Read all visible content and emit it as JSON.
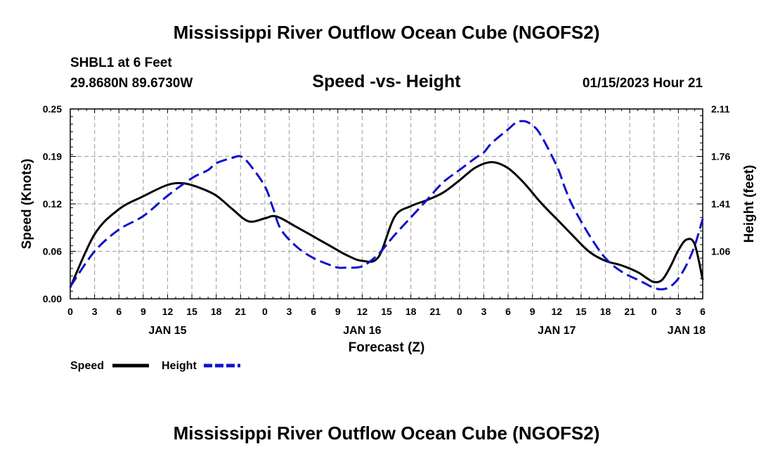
{
  "title": "Mississippi River Outflow Ocean Cube (NGOFS2)",
  "station": "SHBL1 at 6 Feet",
  "coords": "29.8680N  89.6730W",
  "chart_title": "Speed -vs- Height",
  "timestamp": "01/15/2023 Hour 21",
  "footer_title": "Mississippi River Outflow Ocean Cube (NGOFS2)",
  "chart_data": {
    "type": "line",
    "title": "Speed -vs- Height",
    "xlabel": "Forecast (Z)",
    "ylabel_left": "Speed (Knots)",
    "ylabel_right": "Height (feet)",
    "x_range_hours": [
      0,
      78
    ],
    "x_tick_labels": [
      "0",
      "3",
      "6",
      "9",
      "12",
      "15",
      "18",
      "21",
      "0",
      "3",
      "6",
      "9",
      "12",
      "15",
      "18",
      "21",
      "0",
      "3",
      "6",
      "9",
      "12",
      "15",
      "18",
      "21",
      "0",
      "3",
      "6"
    ],
    "day_labels": [
      {
        "text": "JAN 15",
        "hour": 12
      },
      {
        "text": "JAN 16",
        "hour": 36
      },
      {
        "text": "JAN 17",
        "hour": 60
      },
      {
        "text": "JAN 18",
        "hour": 76
      }
    ],
    "y_left": {
      "range": [
        0,
        0.25
      ],
      "ticks": [
        "0.00",
        "0.06",
        "0.12",
        "0.19",
        "0.25"
      ]
    },
    "y_right": {
      "range": [
        0.71,
        2.11
      ],
      "ticks": [
        "1.06",
        "1.41",
        "1.76",
        "2.11"
      ]
    },
    "series": [
      {
        "name": "Speed",
        "axis": "left",
        "color": "#000000",
        "dash": "solid",
        "x": [
          0,
          3,
          6,
          9,
          12,
          14,
          16,
          18,
          20,
          22,
          24,
          25,
          26,
          28,
          30,
          32,
          34,
          36,
          38,
          40,
          42,
          44,
          46,
          48,
          50,
          52,
          54,
          56,
          58,
          60,
          62,
          64,
          66,
          68,
          70,
          71,
          72,
          73,
          74,
          75,
          76,
          77,
          78
        ],
        "values": [
          0.015,
          0.085,
          0.118,
          0.135,
          0.15,
          0.152,
          0.146,
          0.136,
          0.118,
          0.102,
          0.106,
          0.109,
          0.106,
          0.094,
          0.082,
          0.07,
          0.058,
          0.05,
          0.055,
          0.108,
          0.122,
          0.13,
          0.14,
          0.156,
          0.173,
          0.18,
          0.172,
          0.152,
          0.127,
          0.105,
          0.083,
          0.062,
          0.05,
          0.044,
          0.035,
          0.028,
          0.022,
          0.025,
          0.042,
          0.064,
          0.078,
          0.072,
          0.025
        ]
      },
      {
        "name": "Height",
        "axis": "right",
        "color": "#1111cc",
        "dash": "dashed",
        "x": [
          0,
          3,
          6,
          9,
          12,
          15,
          17,
          18,
          20,
          21,
          22,
          24,
          25,
          26,
          28,
          30,
          32,
          33,
          34,
          36,
          38,
          40,
          42,
          44,
          46,
          48,
          50,
          51,
          52,
          54,
          55,
          56,
          57,
          58,
          60,
          61,
          62,
          64,
          66,
          68,
          70,
          71,
          72,
          73,
          74,
          75,
          76,
          77,
          78
        ],
        "values": [
          0.8,
          1.06,
          1.22,
          1.32,
          1.47,
          1.6,
          1.66,
          1.71,
          1.75,
          1.76,
          1.71,
          1.54,
          1.38,
          1.22,
          1.09,
          1.01,
          0.96,
          0.94,
          0.94,
          0.95,
          1.04,
          1.18,
          1.31,
          1.44,
          1.57,
          1.66,
          1.75,
          1.79,
          1.86,
          1.96,
          2.01,
          2.02,
          1.99,
          1.92,
          1.69,
          1.53,
          1.39,
          1.18,
          1.01,
          0.91,
          0.85,
          0.82,
          0.79,
          0.78,
          0.8,
          0.86,
          0.96,
          1.1,
          1.3
        ]
      }
    ],
    "legend": [
      {
        "label": "Speed",
        "color": "#000000",
        "dash": "solid"
      },
      {
        "label": "Height",
        "color": "#1111cc",
        "dash": "dashed"
      }
    ]
  }
}
